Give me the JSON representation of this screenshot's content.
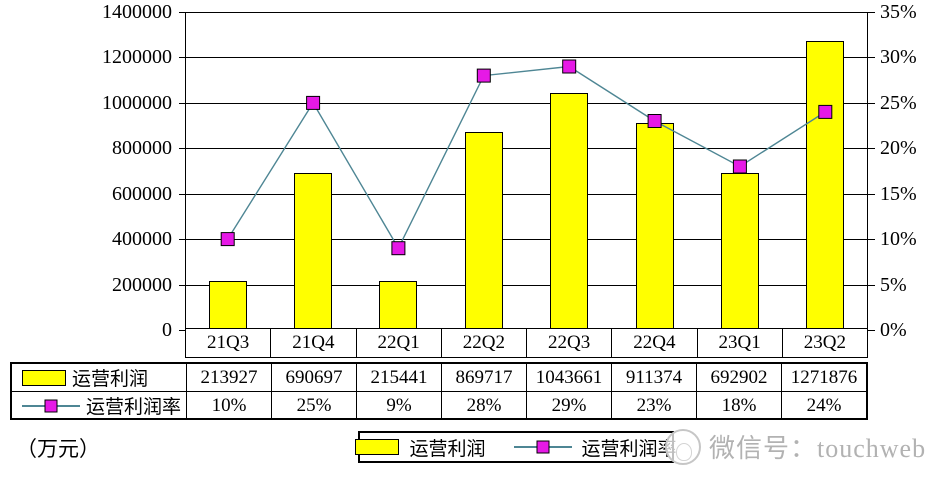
{
  "unit_label": "（万元）",
  "watermark": {
    "logo": "touchweb-logo",
    "label": "微信号：touchweb"
  },
  "legend": {
    "bar_label": "运营利润",
    "line_label": "运营利润率"
  },
  "colors": {
    "bar_fill": "#ffff00",
    "bar_border": "#000000",
    "line": "#4e8694",
    "marker_fill": "#e619e6",
    "marker_border": "#000000",
    "grid": "#000000",
    "watermark_text": "#b2b2b2"
  },
  "chart_data": [
    {
      "type": "bar",
      "name": "运营利润",
      "categories": [
        "21Q3",
        "21Q4",
        "22Q1",
        "22Q2",
        "22Q3",
        "22Q4",
        "23Q1",
        "23Q2"
      ],
      "values": [
        213927,
        690697,
        215441,
        869717,
        1043661,
        911374,
        692902,
        1271876
      ],
      "axis": "left",
      "ylim": [
        0,
        1400000
      ],
      "ytick_step": 200000,
      "yticks_top_to_bottom": [
        "1400000",
        "1200000",
        "1000000",
        "800000",
        "600000",
        "400000",
        "200000",
        "0"
      ],
      "grid": "horizontal",
      "color": "#ffff00"
    },
    {
      "type": "line",
      "name": "运营利润率",
      "categories": [
        "21Q3",
        "21Q4",
        "22Q1",
        "22Q2",
        "22Q3",
        "22Q4",
        "23Q1",
        "23Q2"
      ],
      "values_percent": [
        10,
        25,
        9,
        28,
        29,
        23,
        18,
        24
      ],
      "axis": "right",
      "ylim_percent": [
        0,
        35
      ],
      "ytick_step_percent": 5,
      "yticks_top_to_bottom": [
        "35%",
        "30%",
        "25%",
        "20%",
        "15%",
        "10%",
        "5%",
        "0%"
      ],
      "color": "#4e8694",
      "marker": "square",
      "marker_color": "#e619e6"
    }
  ],
  "table": {
    "category_header": [
      "21Q3",
      "21Q4",
      "22Q1",
      "22Q2",
      "22Q3",
      "22Q4",
      "23Q1",
      "23Q2"
    ],
    "rows": [
      {
        "key": "bar",
        "label": "运营利润",
        "cells": [
          "213927",
          "690697",
          "215441",
          "869717",
          "1043661",
          "911374",
          "692902",
          "1271876"
        ]
      },
      {
        "key": "line",
        "label": "运营利润率",
        "cells": [
          "10%",
          "25%",
          "9%",
          "28%",
          "29%",
          "23%",
          "18%",
          "24%"
        ]
      }
    ]
  }
}
